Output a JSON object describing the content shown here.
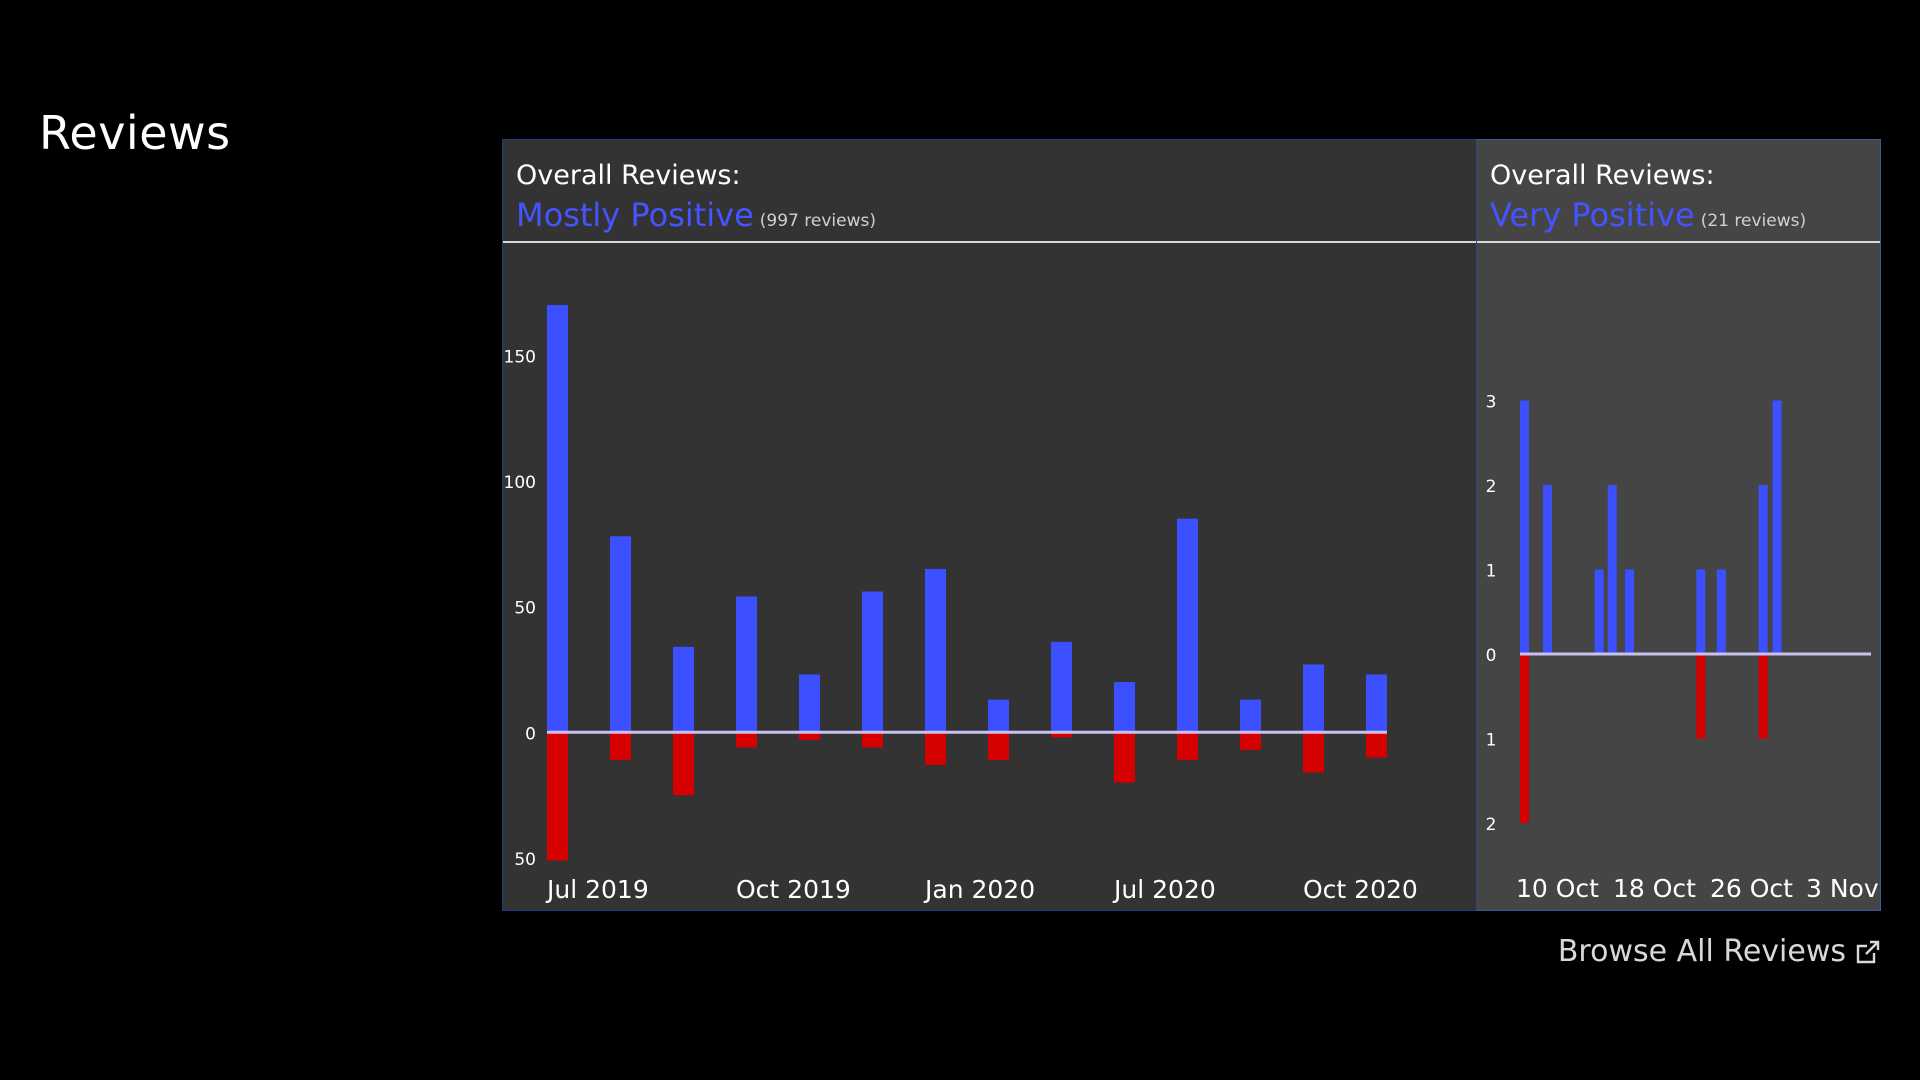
{
  "section": {
    "title": "Reviews"
  },
  "overall": {
    "label": "Overall Reviews:",
    "rating": "Mostly Positive",
    "count": "(997 reviews)"
  },
  "recent": {
    "label": "Overall Reviews:",
    "rating": "Very Positive",
    "count": "(21 reviews)"
  },
  "browse": {
    "label": "Browse All Reviews",
    "icon": "external-link-icon"
  },
  "colors": {
    "positive": "#3d50ff",
    "negative": "#d50000",
    "rating": "#4454ff",
    "baseline": "#c8c0ee"
  },
  "chart_data": [
    {
      "type": "bar",
      "x": [
        "2019-07",
        "2019-08",
        "2019-09",
        "2019-10",
        "2019-11",
        "2019-12",
        "2020-01",
        "2020-02",
        "2020-03",
        "2020-04",
        "2020-05",
        "2020-06",
        "2020-07",
        "2020-08"
      ],
      "series": [
        {
          "values": [
            170,
            78,
            34,
            54,
            23,
            56,
            65,
            13,
            36,
            20,
            85,
            13,
            27,
            23
          ]
        },
        {
          "values": [
            -51,
            -11,
            -25,
            -6,
            -3,
            -6,
            -13,
            -11,
            -2,
            -20,
            -11,
            -7,
            -16,
            -10
          ]
        }
      ],
      "xticks": [
        "Jul 2019",
        "Oct 2019",
        "Jan 2020",
        "Jul 2020",
        "Oct 2020"
      ],
      "yticks": [
        {
          "value": 150,
          "label": "150"
        },
        {
          "value": 100,
          "label": "100"
        },
        {
          "value": 50,
          "label": "50"
        },
        {
          "value": 0,
          "label": "0"
        },
        {
          "value": -50,
          "label": "50"
        }
      ],
      "ylim": [
        -52,
        172
      ]
    },
    {
      "type": "bar",
      "x": [
        "2020-10-09",
        "2020-10-10",
        "2020-10-11",
        "2020-10-12",
        "2020-10-13",
        "2020-10-14",
        "2020-10-15",
        "2020-10-16",
        "2020-10-17",
        "2020-10-18",
        "2020-10-19",
        "2020-10-20",
        "2020-10-21",
        "2020-10-22",
        "2020-10-23",
        "2020-10-24",
        "2020-10-25",
        "2020-10-26",
        "2020-10-27",
        "2020-10-28",
        "2020-10-29",
        "2020-10-30",
        "2020-10-31",
        "2020-11-01",
        "2020-11-02",
        "2020-11-03",
        "2020-11-04"
      ],
      "series": [
        {
          "values": [
            3,
            0,
            2,
            0,
            0,
            0,
            0,
            0,
            1,
            0,
            2,
            0,
            1,
            0,
            0,
            0,
            0,
            0,
            0,
            0,
            0,
            0,
            0,
            0,
            2,
            3,
            0
          ]
        },
        {
          "values": [
            -2,
            0,
            0,
            0,
            0,
            0,
            0,
            0,
            0,
            0,
            0,
            0,
            0,
            0,
            0,
            0,
            0,
            0,
            0,
            0,
            0,
            0,
            0,
            0,
            -1,
            0,
            0
          ]
        }
      ],
      "extra_negative": [
        {
          "x": "2020-10-25",
          "value": -1
        }
      ],
      "extra_positive": [
        {
          "x": "2020-10-25",
          "value": 1
        },
        {
          "x": "2020-10-27",
          "value": 1
        }
      ],
      "xticks": [
        "10 Oct",
        "18 Oct",
        "26 Oct",
        "3 Nov"
      ],
      "yticks": [
        {
          "value": 3,
          "label": "3"
        },
        {
          "value": 2,
          "label": "2"
        },
        {
          "value": 1,
          "label": "1"
        },
        {
          "value": 0,
          "label": "0"
        },
        {
          "value": -1,
          "label": "1"
        },
        {
          "value": -2,
          "label": "2"
        }
      ],
      "ylim": [
        -2,
        3
      ]
    }
  ]
}
